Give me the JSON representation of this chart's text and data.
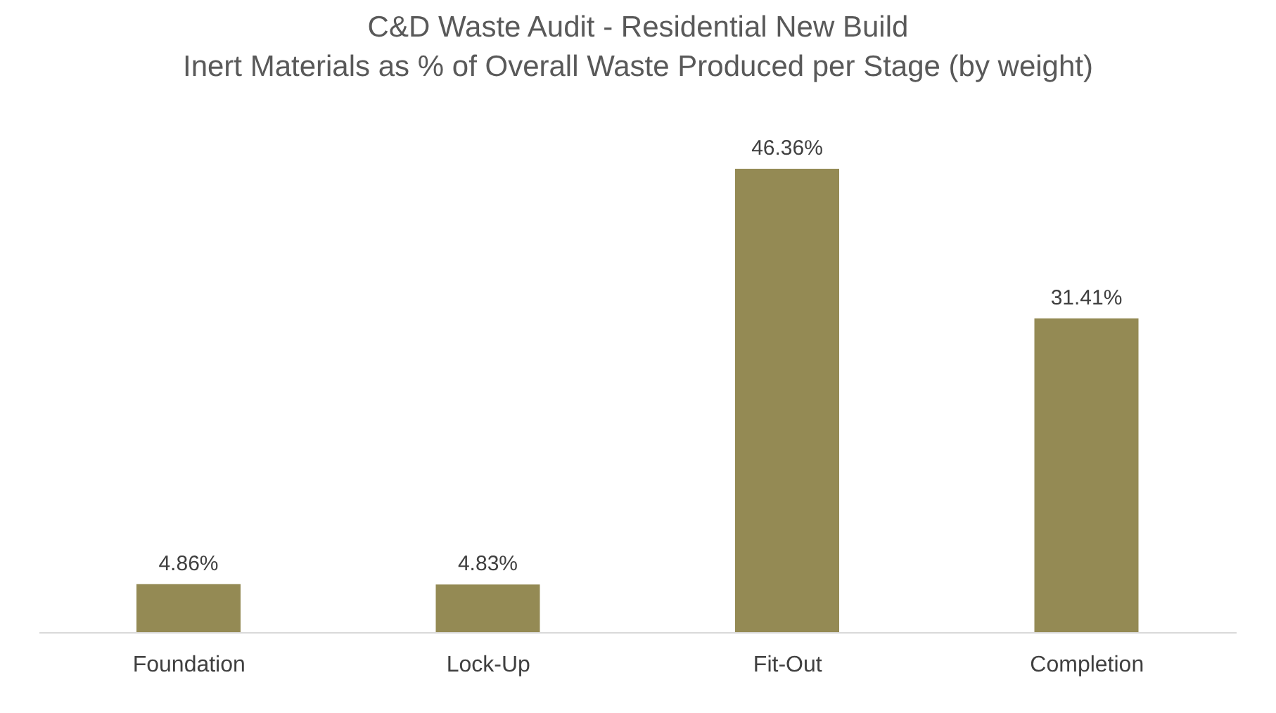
{
  "chart_data": {
    "type": "bar",
    "title": "C&D Waste Audit - Residential New Build",
    "subtitle": "Inert Materials as % of Overall Waste Produced per Stage (by weight)",
    "categories": [
      "Foundation",
      "Lock-Up",
      "Fit-Out",
      "Completion"
    ],
    "values": [
      4.86,
      4.83,
      46.36,
      31.41
    ],
    "value_labels": [
      "4.86%",
      "4.83%",
      "46.36%",
      "31.41%"
    ],
    "color": "#948a54"
  }
}
